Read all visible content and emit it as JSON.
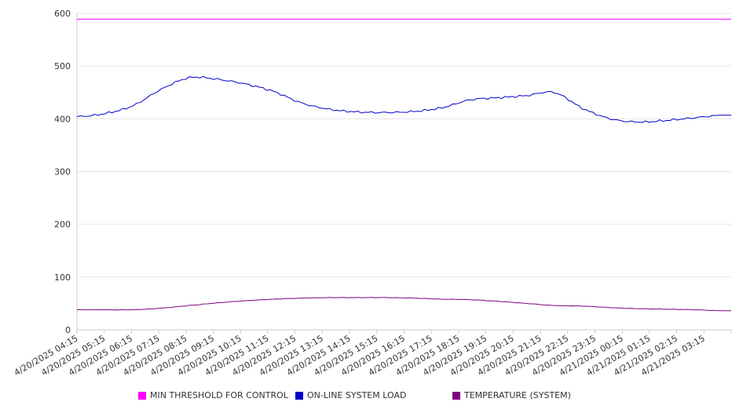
{
  "chart_data": {
    "type": "line",
    "title": "",
    "xlabel": "",
    "ylabel": "",
    "ylim": [
      0,
      600
    ],
    "yticks": [
      "0",
      "100",
      "200",
      "300",
      "400",
      "500",
      "600"
    ],
    "grid": "horizontal",
    "legend_position": "bottom",
    "x": [
      "4/20/2025 04:15",
      "4/20/2025 05:15",
      "4/20/2025 06:15",
      "4/20/2025 07:15",
      "4/20/2025 08:15",
      "4/20/2025 09:15",
      "4/20/2025 10:15",
      "4/20/2025 11:15",
      "4/20/2025 12:15",
      "4/20/2025 13:15",
      "4/20/2025 14:15",
      "4/20/2025 15:15",
      "4/20/2025 16:15",
      "4/20/2025 17:15",
      "4/20/2025 18:15",
      "4/20/2025 19:15",
      "4/20/2025 20:15",
      "4/20/2025 21:15",
      "4/20/2025 22:15",
      "4/20/2025 23:15",
      "4/21/2025 00:15",
      "4/21/2025 01:15",
      "4/21/2025 02:15",
      "4/21/2025 03:15"
    ],
    "series": [
      {
        "name": "MIN THRESHOLD FOR CONTROL",
        "color": "#ff00ff",
        "values": [
          589,
          589,
          589,
          589,
          589,
          589,
          589,
          589,
          589,
          589,
          589,
          589,
          589,
          589,
          589,
          589,
          589,
          589,
          589,
          589,
          589,
          589,
          589,
          589
        ]
      },
      {
        "name": "ON-LINE SYSTEM LOAD",
        "color": "#0000cc",
        "values": [
          404,
          410,
          425,
          456,
          478,
          475,
          466,
          452,
          430,
          418,
          413,
          412,
          414,
          421,
          436,
          440,
          444,
          450,
          420,
          400,
          394,
          397,
          402,
          407
        ]
      },
      {
        "name": "TEMPERATURE (SYSTEM)",
        "color": "#800080",
        "values": [
          38,
          38,
          38,
          41,
          46,
          51,
          55,
          58,
          60,
          61,
          61,
          61,
          60,
          58,
          57,
          54,
          50,
          46,
          45,
          42,
          40,
          39,
          38,
          36
        ]
      }
    ]
  }
}
